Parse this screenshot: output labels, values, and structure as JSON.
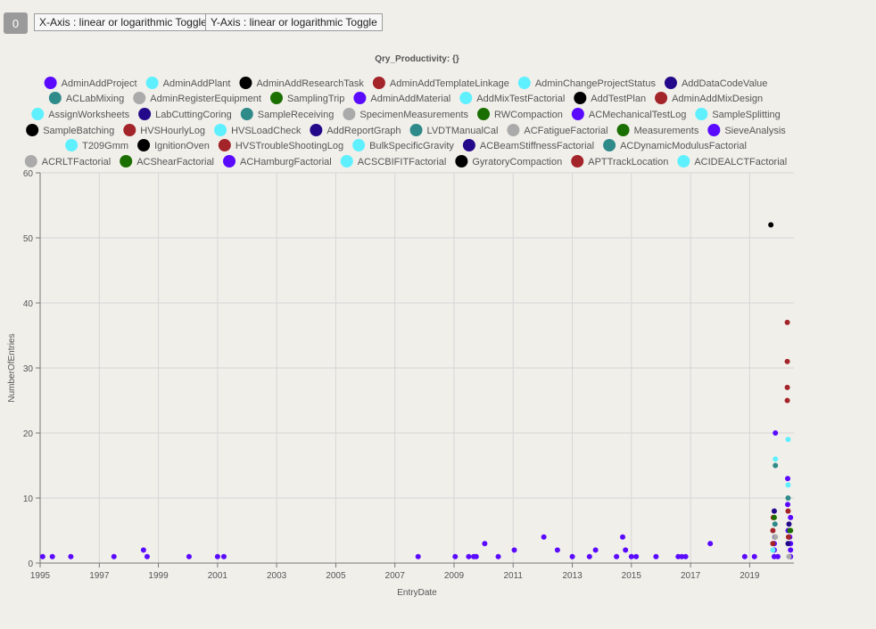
{
  "badge": "0",
  "toggles": {
    "x_axis": "X-Axis : linear or logarithmic Toggle",
    "y_axis": "Y-Axis : linear or logarithmic Toggle"
  },
  "chart_data": {
    "type": "scatter",
    "title": "Qry_Productivity: {}",
    "xlabel": "EntryDate",
    "ylabel": "NumberOfEntries",
    "xlim": [
      "1995-01-01",
      "2020-07-01"
    ],
    "ylim": [
      0,
      60
    ],
    "x_ticks": [
      "1995",
      "1997",
      "1999",
      "2001",
      "2003",
      "2005",
      "2007",
      "2009",
      "2011",
      "2013",
      "2015",
      "2017",
      "2019"
    ],
    "y_ticks": [
      0,
      10,
      20,
      30,
      40,
      50,
      60
    ],
    "grid": true,
    "legend_position": "top",
    "series": [
      {
        "name": "AdminAddProject",
        "color": "#5a0aff",
        "points": [
          [
            "1995-02-01",
            1
          ],
          [
            "1995-06-01",
            1
          ],
          [
            "1996-01-15",
            1
          ],
          [
            "1997-07-01",
            1
          ],
          [
            "1998-07-01",
            2
          ],
          [
            "1998-08-15",
            1
          ],
          [
            "2000-01-15",
            1
          ],
          [
            "2001-01-01",
            1
          ],
          [
            "2001-03-20",
            1
          ],
          [
            "2007-10-15",
            1
          ],
          [
            "2009-01-15",
            1
          ],
          [
            "2009-07-01",
            1
          ],
          [
            "2009-09-01",
            1
          ],
          [
            "2009-10-01",
            1
          ],
          [
            "2010-01-15",
            3
          ],
          [
            "2010-07-01",
            1
          ],
          [
            "2011-01-15",
            2
          ],
          [
            "2012-01-15",
            4
          ],
          [
            "2012-07-01",
            2
          ],
          [
            "2013-01-01",
            1
          ],
          [
            "2013-08-01",
            1
          ],
          [
            "2013-10-15",
            2
          ],
          [
            "2014-07-01",
            1
          ],
          [
            "2014-09-15",
            4
          ],
          [
            "2014-10-20",
            2
          ],
          [
            "2015-01-01",
            1
          ],
          [
            "2015-03-01",
            1
          ],
          [
            "2015-11-01",
            1
          ],
          [
            "2016-08-01",
            1
          ],
          [
            "2016-09-15",
            1
          ],
          [
            "2016-11-01",
            1
          ],
          [
            "2017-09-01",
            3
          ],
          [
            "2018-11-01",
            1
          ],
          [
            "2019-03-01",
            1
          ],
          [
            "2019-11-15",
            20
          ],
          [
            "2019-11-01",
            3
          ],
          [
            "2019-11-01",
            2
          ],
          [
            "2019-11-01",
            1
          ],
          [
            "2019-12-15",
            1
          ],
          [
            "2020-04-15",
            13
          ],
          [
            "2020-04-15",
            9
          ],
          [
            "2020-05-20",
            7
          ],
          [
            "2020-04-20",
            5
          ],
          [
            "2020-05-10",
            4
          ],
          [
            "2020-05-20",
            3
          ],
          [
            "2020-05-20",
            2
          ],
          [
            "2020-05-20",
            1
          ]
        ]
      },
      {
        "name": "AdminAddPlant",
        "color": "#5ef0ff",
        "points": [
          [
            "2019-11-15",
            16
          ],
          [
            "2020-04-20",
            19
          ],
          [
            "2020-04-20",
            12
          ],
          [
            "2019-10-15",
            2
          ]
        ]
      },
      {
        "name": "GyratoryCompaction",
        "color": "#000000",
        "points": [
          [
            "2019-09-20",
            52
          ]
        ]
      },
      {
        "name": "AdminAddTemplateLinkage",
        "color": "#a32429",
        "points": [
          [
            "2020-04-10",
            37
          ],
          [
            "2020-04-10",
            31
          ],
          [
            "2020-04-10",
            27
          ],
          [
            "2020-04-10",
            25
          ],
          [
            "2019-10-20",
            7
          ],
          [
            "2019-10-15",
            5
          ],
          [
            "2019-10-15",
            3
          ],
          [
            "2020-04-20",
            8
          ],
          [
            "2020-04-25",
            4
          ]
        ]
      },
      {
        "name": "ACLabMixing",
        "color": "#2f8a8a",
        "points": [
          [
            "2019-11-15",
            15
          ],
          [
            "2019-11-10",
            6
          ],
          [
            "2020-04-20",
            10
          ]
        ]
      },
      {
        "name": "RWCompaction",
        "color": "#1a6f00",
        "points": [
          [
            "2019-11-01",
            7
          ],
          [
            "2020-05-20",
            5
          ],
          [
            "2020-05-10",
            5
          ]
        ]
      },
      {
        "name": "LabCuttingCoring",
        "color": "#240a8a",
        "points": [
          [
            "2019-11-01",
            8
          ],
          [
            "2019-11-10",
            4
          ],
          [
            "2020-05-01",
            6
          ],
          [
            "2020-04-20",
            3
          ]
        ]
      },
      {
        "name": "SpecimenMeasurements",
        "color": "#aaaaaa",
        "points": [
          [
            "2019-11-15",
            4
          ],
          [
            "2020-05-01",
            1
          ]
        ]
      }
    ],
    "legend": [
      {
        "name": "AdminAddProject",
        "color": "#5a0aff"
      },
      {
        "name": "AdminAddPlant",
        "color": "#5ef0ff"
      },
      {
        "name": "AdminAddResearchTask",
        "color": "#000000"
      },
      {
        "name": "AdminAddTemplateLinkage",
        "color": "#a32429"
      },
      {
        "name": "AdminChangeProjectStatus",
        "color": "#5ef0ff"
      },
      {
        "name": "AddDataCodeValue",
        "color": "#240a8a"
      },
      {
        "name": "ACLabMixing",
        "color": "#2f8a8a"
      },
      {
        "name": "AdminRegisterEquipment",
        "color": "#aaaaaa"
      },
      {
        "name": "SamplingTrip",
        "color": "#1a6f00"
      },
      {
        "name": "AdminAddMaterial",
        "color": "#5a0aff"
      },
      {
        "name": "AddMixTestFactorial",
        "color": "#5ef0ff"
      },
      {
        "name": "AddTestPlan",
        "color": "#000000"
      },
      {
        "name": "AdminAddMixDesign",
        "color": "#a32429"
      },
      {
        "name": "AssignWorksheets",
        "color": "#5ef0ff"
      },
      {
        "name": "LabCuttingCoring",
        "color": "#240a8a"
      },
      {
        "name": "SampleReceiving",
        "color": "#2f8a8a"
      },
      {
        "name": "SpecimenMeasurements",
        "color": "#aaaaaa"
      },
      {
        "name": "RWCompaction",
        "color": "#1a6f00"
      },
      {
        "name": "ACMechanicalTestLog",
        "color": "#5a0aff"
      },
      {
        "name": "SampleSplitting",
        "color": "#5ef0ff"
      },
      {
        "name": "SampleBatching",
        "color": "#000000"
      },
      {
        "name": "HVSHourlyLog",
        "color": "#a32429"
      },
      {
        "name": "HVSLoadCheck",
        "color": "#5ef0ff"
      },
      {
        "name": "AddReportGraph",
        "color": "#240a8a"
      },
      {
        "name": "LVDTManualCal",
        "color": "#2f8a8a"
      },
      {
        "name": "ACFatigueFactorial",
        "color": "#aaaaaa"
      },
      {
        "name": "Measurements",
        "color": "#1a6f00"
      },
      {
        "name": "SieveAnalysis",
        "color": "#5a0aff"
      },
      {
        "name": "T209Gmm",
        "color": "#5ef0ff"
      },
      {
        "name": "IgnitionOven",
        "color": "#000000"
      },
      {
        "name": "HVSTroubleShootingLog",
        "color": "#a32429"
      },
      {
        "name": "BulkSpecificGravity",
        "color": "#5ef0ff"
      },
      {
        "name": "ACBeamStiffnessFactorial",
        "color": "#240a8a"
      },
      {
        "name": "ACDynamicModulusFactorial",
        "color": "#2f8a8a"
      },
      {
        "name": "ACRLTFactorial",
        "color": "#aaaaaa"
      },
      {
        "name": "ACShearFactorial",
        "color": "#1a6f00"
      },
      {
        "name": "ACHamburgFactorial",
        "color": "#5a0aff"
      },
      {
        "name": "ACSCBIFITFactorial",
        "color": "#5ef0ff"
      },
      {
        "name": "GyratoryCompaction",
        "color": "#000000"
      },
      {
        "name": "APTTrackLocation",
        "color": "#a32429"
      },
      {
        "name": "ACIDEALCTFactorial",
        "color": "#5ef0ff"
      }
    ]
  }
}
